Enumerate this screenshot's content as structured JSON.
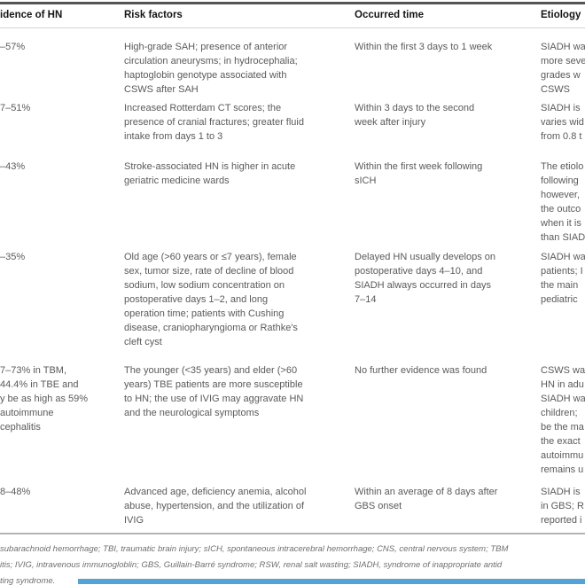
{
  "table": {
    "headers": {
      "incidence": "idence of HN",
      "risk_factors": "Risk factors",
      "occurred_time": "Occurred time",
      "etiology": "Etiology"
    },
    "rows": [
      {
        "incidence": "–57%",
        "risk_factors": "High-grade SAH; presence of anterior\ncirculation aneurysms; in hydrocephalia;\nhaptoglobin genotype associated with\nCSWS after SAH",
        "occurred_time": "Within the first 3 days to 1 week",
        "etiology": "SIADH wa\nmore seve\ngrades w\nCSWS"
      },
      {
        "incidence": "7–51%",
        "risk_factors": "Increased Rotterdam CT scores; the\npresence of cranial fractures; greater fluid\nintake from days 1 to 3",
        "occurred_time": "Within 3 days to the second\nweek after injury",
        "etiology": "SIADH is\nvaries wid\nfrom 0.8 t"
      },
      {
        "incidence": "–43%",
        "risk_factors": "Stroke-associated HN is higher in acute\ngeriatric medicine wards",
        "occurred_time": "Within the first week following\nsICH",
        "etiology": "The etiolo\nfollowing\nhowever,\nthe outco\nwhen it is\nthan SIAD"
      },
      {
        "incidence": "–35%",
        "risk_factors": "Old age (>60 years or ≤7 years), female\nsex, tumor size, rate of decline of blood\nsodium, low sodium concentration on\npostoperative days 1–2, and long\noperation time; patients with Cushing\ndisease, craniopharyngioma or Rathke's\ncleft cyst",
        "occurred_time": "Delayed HN usually develops on\npostoperative days 4–10, and\nSIADH always occurred in days\n7–14",
        "etiology": "SIADH wa\npatients; I\nthe main\npediatric"
      },
      {
        "incidence": "7–73% in TBM,\n44.4% in TBE and\ny be as high as 59%\nautoimmune\ncephalitis",
        "risk_factors": "The younger (<35 years) and elder (>60\nyears) TBE patients are more susceptible\nto HN; the use of IVIG may aggravate HN\nand the neurological symptoms",
        "occurred_time": "No further evidence was found",
        "etiology": "CSWS wa\nHN in adu\nSIADH wa\nchildren;\nbe the ma\nthe exact\nautoimmu\nremains u"
      },
      {
        "incidence": "8–48%",
        "risk_factors": "Advanced age, deficiency anemia, alcohol\nabuse, hypertension, and the utilization of\nIVIG",
        "occurred_time": "Within an average of 8 days after\nGBS onset",
        "etiology": "SIADH is\nin GBS; R\nreported i"
      }
    ],
    "footnote": "subarachnoid hemorrhage; TBI, traumatic brain injury; sICH, spontaneous intracerebral hemorrhage; CNS, central nervous system; TBM\nitis; IVIG, intravenous immunogloblin; GBS, Guillain-Barré syndrome; RSW, renal salt wasting; SIADH, syndrome of inappropriate antid\nting syndrome."
  },
  "colors": {
    "top_rule": "#545454",
    "subheader_rule": "#d4d4d4",
    "bottom_rule": "#b3b3b3",
    "body_text": "#595a5c",
    "footnote_text": "#6e6f71",
    "blue_bar": "#54a2d7"
  }
}
